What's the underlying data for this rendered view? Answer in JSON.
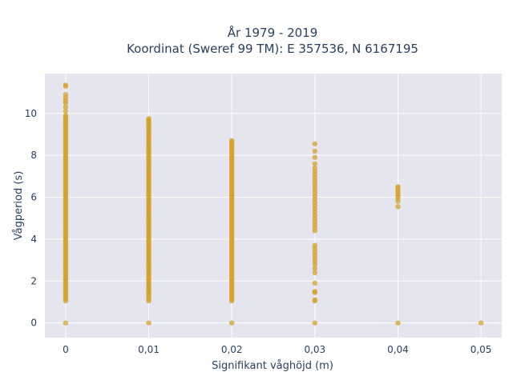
{
  "chart_data": {
    "type": "scatter",
    "title": [
      "År 1979 - 2019",
      "Koordinat (Sweref 99 TM): E 357536, N 6167195"
    ],
    "xlabel": "Signifikant våghöjd (m)",
    "ylabel": "Vågperiod (s)",
    "xlim": [
      -0.0025,
      0.0525
    ],
    "ylim": [
      -0.7,
      11.9
    ],
    "x_ticks": [
      0,
      0.01,
      0.02,
      0.03,
      0.04,
      0.05
    ],
    "x_tick_labels": [
      "0",
      "0,01",
      "0,02",
      "0,03",
      "0,04",
      "0,05"
    ],
    "y_ticks": [
      0,
      2,
      4,
      6,
      8,
      10
    ],
    "y_tick_labels": [
      "0",
      "2",
      "4",
      "6",
      "8",
      "10"
    ],
    "grid": true,
    "marker_color": "#d4a229",
    "plot_bg": "#e5e5ef",
    "series": [
      {
        "x_value": 0,
        "y_min": 1.05,
        "y_max": 9.9,
        "extra_y": [
          10.1,
          10.3,
          10.5,
          10.6,
          10.75,
          10.9,
          11.3,
          11.35,
          0
        ],
        "y_values": []
      },
      {
        "x_value": 0.01,
        "y_min": 1.05,
        "y_max": 9.75,
        "extra_y": [
          0
        ],
        "y_values": []
      },
      {
        "x_value": 0.02,
        "y_min": 1.05,
        "y_max": 8.7,
        "extra_y": [
          0
        ],
        "y_values": []
      },
      {
        "x_value": 0.03,
        "y_min": null,
        "y_max": null,
        "extra_y": [],
        "y_values": [
          0,
          1.05,
          1.1,
          1.45,
          1.5,
          1.9,
          2.4,
          2.6,
          2.8,
          2.95,
          3.1,
          3.25,
          3.4,
          3.55,
          3.7,
          4.4,
          4.55,
          4.7,
          4.85,
          5.0,
          5.15,
          5.3,
          5.45,
          5.6,
          5.75,
          5.9,
          6.05,
          6.2,
          6.35,
          6.5,
          6.65,
          6.8,
          6.95,
          7.1,
          7.25,
          7.4,
          7.6,
          7.9,
          8.2,
          8.55
        ]
      },
      {
        "x_value": 0.04,
        "y_min": null,
        "y_max": null,
        "extra_y": [],
        "y_values": [
          0,
          5.55,
          5.8,
          5.95,
          6.05,
          6.15,
          6.25,
          6.35,
          6.45,
          6.5
        ]
      },
      {
        "x_value": 0.05,
        "y_min": null,
        "y_max": null,
        "extra_y": [],
        "y_values": [
          0
        ]
      }
    ]
  }
}
